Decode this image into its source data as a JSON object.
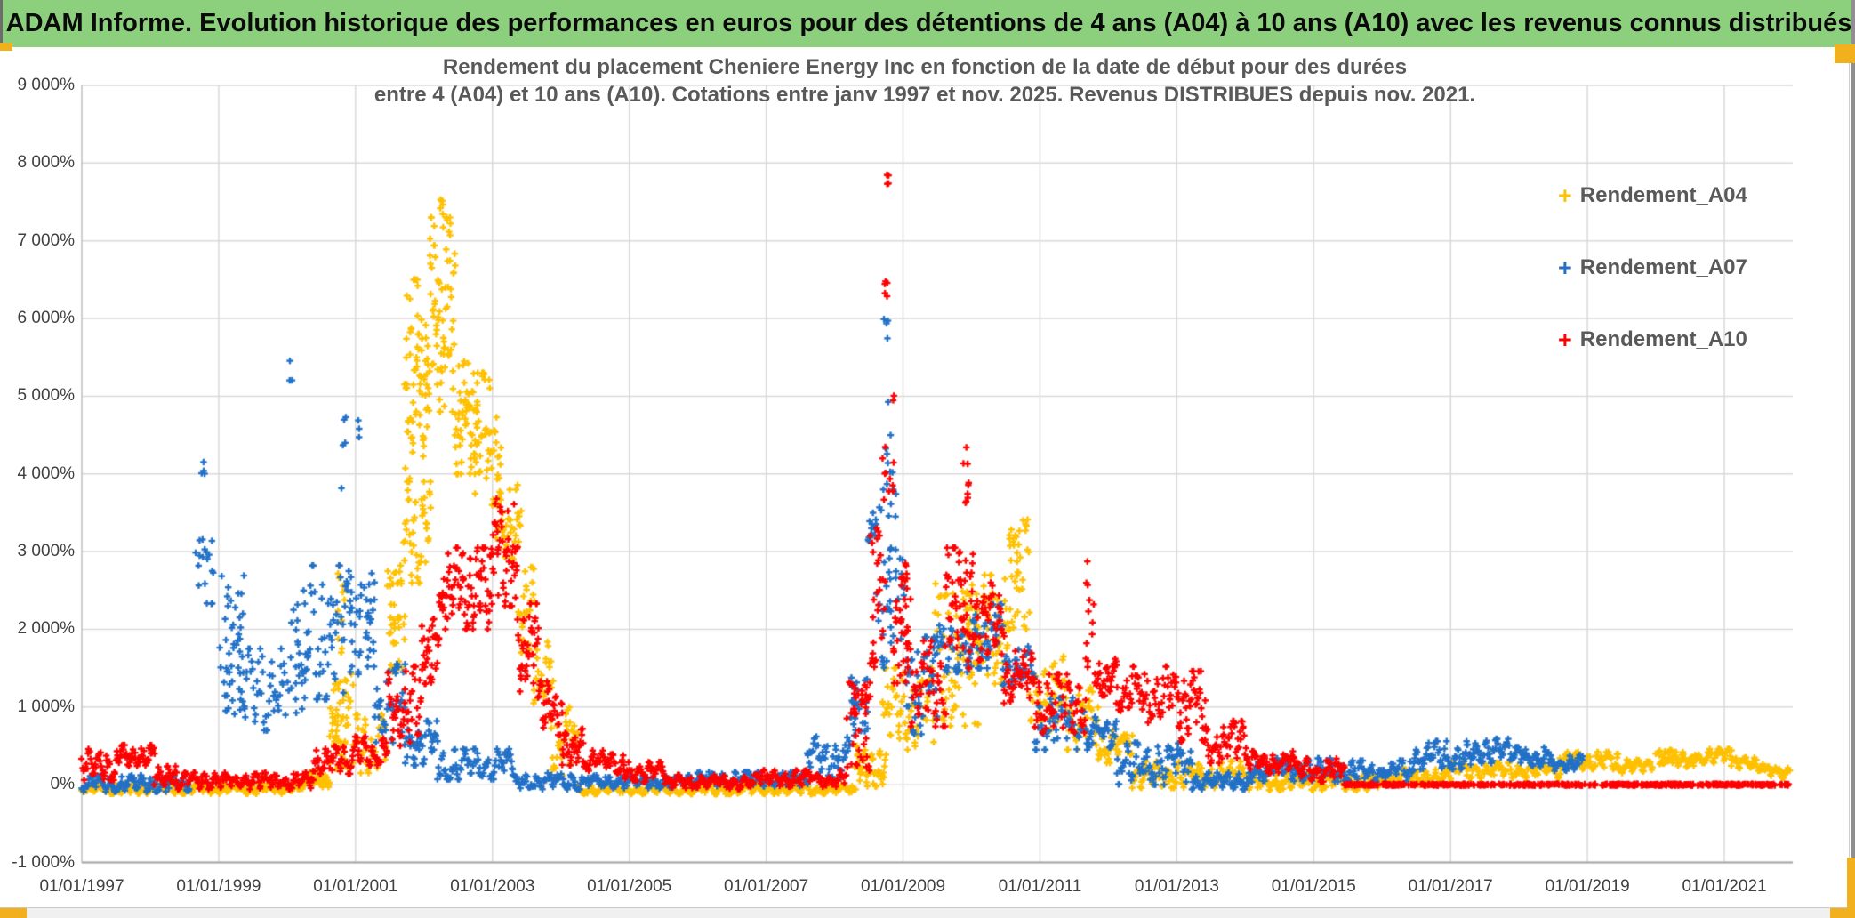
{
  "banner": {
    "text": "ADAM Informe. Evolution historique des performances en euros pour des détentions de 4 ans (A04) à 10 ans (A10) avec les revenus connus distribués",
    "background": "#8CCF7D"
  },
  "colors": {
    "grid": "#D9D9D9",
    "axis_left": "#BFBFBF",
    "axis_bottom": "#A6A6A6",
    "tick_text": "#404040",
    "title_text": "#595959",
    "accent_corner": "#F2B01E"
  },
  "chart_data": {
    "type": "scatter",
    "title_line1": "Rendement du placement Cheniere Energy Inc en fonction de la date de début pour des durées",
    "title_line2": "entre 4 (A04) et 10 ans (A10). Cotations entre janv 1997 et nov. 2025. Revenus DISTRIBUES depuis nov. 2021.",
    "marker": "plus",
    "grid": "on",
    "legend_position": "right-inside-top",
    "x_axis": {
      "min": 1997.0,
      "max": 2022.0,
      "tick_years": [
        1997,
        1999,
        2001,
        2003,
        2005,
        2007,
        2009,
        2011,
        2013,
        2015,
        2017,
        2019,
        2021
      ],
      "tick_labels": [
        "01/01/1997",
        "01/01/1999",
        "01/01/2001",
        "01/01/2003",
        "01/01/2005",
        "01/01/2007",
        "01/01/2009",
        "01/01/2011",
        "01/01/2013",
        "01/01/2015",
        "01/01/2017",
        "01/01/2019",
        "01/01/2021"
      ]
    },
    "y_axis": {
      "min": -1000,
      "max": 9000,
      "tick_step": 1000,
      "tick_values": [
        9000,
        8000,
        7000,
        6000,
        5000,
        4000,
        3000,
        2000,
        1000,
        0,
        -1000
      ],
      "tick_labels": [
        "9 000%",
        "8 000%",
        "7 000%",
        "6 000%",
        "5 000%",
        "4 000%",
        "3 000%",
        "2 000%",
        "1 000%",
        "0%",
        "-1 000%"
      ]
    },
    "legend": [
      {
        "label": "Rendement_A04",
        "color": "#FFC000"
      },
      {
        "label": "Rendement_A07",
        "color": "#2271C7"
      },
      {
        "label": "Rendement_A10",
        "color": "#FE0000"
      }
    ],
    "series": [
      {
        "name": "Rendement_A04",
        "color": "#FFC000",
        "clusters": [
          [
            1997,
            2000.25,
            -115,
            15,
            300,
            0
          ],
          [
            2000.25,
            2000.62,
            -30,
            160,
            40,
            0
          ],
          [
            2000.62,
            2000.97,
            200,
            1500,
            55,
            1
          ],
          [
            2000.74,
            2000.84,
            1500,
            2900,
            10,
            1
          ],
          [
            2001,
            2001.45,
            150,
            900,
            45,
            0
          ],
          [
            2001.45,
            2001.72,
            1400,
            2950,
            40,
            1
          ],
          [
            2001.7,
            2002.1,
            2600,
            3900,
            45,
            0
          ],
          [
            2001.72,
            2002.05,
            3900,
            6500,
            75,
            0
          ],
          [
            2002.05,
            2002.45,
            4800,
            7300,
            85,
            0
          ],
          [
            2002.22,
            2002.32,
            7300,
            7540,
            6,
            1
          ],
          [
            2002.45,
            2002.78,
            4000,
            5450,
            60,
            0
          ],
          [
            2002.75,
            2003.12,
            3600,
            5300,
            50,
            0
          ],
          [
            2003.05,
            2003.42,
            2900,
            3950,
            40,
            0
          ],
          [
            2003.38,
            2003.62,
            1700,
            2800,
            28,
            0
          ],
          [
            2003.6,
            2003.88,
            1050,
            1900,
            25,
            0
          ],
          [
            2003.85,
            2004.25,
            80,
            1000,
            38,
            0
          ],
          [
            2004.25,
            2008.3,
            -120,
            -5,
            280,
            0
          ],
          [
            2008.3,
            2008.75,
            -20,
            500,
            50,
            0
          ],
          [
            2008.7,
            2009.45,
            450,
            1500,
            70,
            0
          ],
          [
            2009.45,
            2010.1,
            700,
            2600,
            80,
            1
          ],
          [
            2010.05,
            2010.55,
            1300,
            2700,
            60,
            0
          ],
          [
            2010.55,
            2010.85,
            2000,
            3460,
            40,
            1
          ],
          [
            2010.85,
            2011.4,
            700,
            1650,
            50,
            0
          ],
          [
            2011.4,
            2011.85,
            450,
            1250,
            40,
            0
          ],
          [
            2011.85,
            2012.35,
            280,
            700,
            40,
            0
          ],
          [
            2012.35,
            2014,
            -40,
            300,
            130,
            0
          ],
          [
            2014,
            2015.95,
            -70,
            140,
            150,
            0
          ],
          [
            2015.95,
            2017,
            0,
            200,
            85,
            0
          ],
          [
            2017,
            2018.6,
            90,
            280,
            120,
            0
          ],
          [
            2018.6,
            2019.45,
            200,
            420,
            70,
            0
          ],
          [
            2019.45,
            2019.95,
            150,
            320,
            40,
            0
          ],
          [
            2019.95,
            2020.25,
            260,
            470,
            25,
            1
          ],
          [
            2020.25,
            2020.55,
            230,
            420,
            30,
            0
          ],
          [
            2020.55,
            2021.1,
            280,
            460,
            45,
            0
          ],
          [
            2021.1,
            2021.6,
            180,
            350,
            40,
            0
          ],
          [
            2021.6,
            2021.95,
            90,
            230,
            30,
            0
          ]
        ]
      },
      {
        "name": "Rendement_A07",
        "color": "#2271C7",
        "clusters": [
          [
            1997,
            1998.6,
            -90,
            120,
            130,
            0
          ],
          [
            1998.65,
            1998.92,
            2300,
            3260,
            18,
            1
          ],
          [
            1998.72,
            1998.82,
            3880,
            4180,
            4,
            1
          ],
          [
            1999,
            1999.38,
            800,
            2700,
            48,
            1
          ],
          [
            1999.35,
            1999.98,
            700,
            1750,
            50,
            0
          ],
          [
            2000,
            2000.3,
            900,
            2500,
            32,
            1
          ],
          [
            2000.03,
            2000.08,
            5120,
            5480,
            3,
            1
          ],
          [
            2000.3,
            2000.92,
            1100,
            2820,
            60,
            0
          ],
          [
            2000.78,
            2000.86,
            3760,
            4740,
            5,
            1
          ],
          [
            2000.92,
            2001.28,
            1400,
            2720,
            42,
            1
          ],
          [
            2001.02,
            2001.08,
            4400,
            4720,
            3,
            1
          ],
          [
            2001.28,
            2001.72,
            500,
            1550,
            42,
            0
          ],
          [
            2001.72,
            2002.2,
            250,
            820,
            45,
            0
          ],
          [
            2002.2,
            2003.3,
            70,
            460,
            85,
            0
          ],
          [
            2003.3,
            2004.4,
            -60,
            150,
            80,
            0
          ],
          [
            2004.4,
            2006,
            -45,
            120,
            115,
            0
          ],
          [
            2006,
            2007.6,
            -20,
            165,
            115,
            0
          ],
          [
            2007.6,
            2008.22,
            90,
            620,
            50,
            0
          ],
          [
            2008.22,
            2008.48,
            600,
            1420,
            28,
            1
          ],
          [
            2008.48,
            2008.64,
            3130,
            3500,
            14,
            1
          ],
          [
            2008.64,
            2008.9,
            3400,
            5000,
            16,
            1
          ],
          [
            2008.72,
            2008.8,
            5650,
            6160,
            4,
            1
          ],
          [
            2008.6,
            2009.05,
            1500,
            3050,
            40,
            1
          ],
          [
            2009.05,
            2009.5,
            650,
            1900,
            50,
            0
          ],
          [
            2009.45,
            2009.98,
            1450,
            2050,
            42,
            0
          ],
          [
            2009.98,
            2010.45,
            1500,
            2320,
            45,
            0
          ],
          [
            2010.45,
            2010.92,
            1280,
            1780,
            38,
            0
          ],
          [
            2010.92,
            2011.72,
            450,
            1120,
            62,
            0
          ],
          [
            2011.72,
            2012.12,
            480,
            870,
            35,
            0
          ],
          [
            2012.12,
            2013.22,
            0,
            540,
            85,
            0
          ],
          [
            2013.22,
            2014.1,
            -60,
            160,
            70,
            0
          ],
          [
            2014.1,
            2015.25,
            50,
            340,
            95,
            0
          ],
          [
            2015.25,
            2016.45,
            40,
            310,
            100,
            0
          ],
          [
            2016.45,
            2017.3,
            200,
            560,
            72,
            0
          ],
          [
            2017.3,
            2017.95,
            280,
            590,
            55,
            0
          ],
          [
            2017.95,
            2018.45,
            230,
            480,
            45,
            0
          ],
          [
            2018.45,
            2018.93,
            180,
            380,
            40,
            0
          ]
        ]
      },
      {
        "name": "Rendement_A10",
        "color": "#FE0000",
        "clusters": [
          [
            1997,
            1997.52,
            60,
            460,
            48,
            0
          ],
          [
            1997.52,
            1998.06,
            240,
            510,
            50,
            0
          ],
          [
            1998.06,
            1998.38,
            0,
            260,
            30,
            0
          ],
          [
            1998.38,
            2000.38,
            -60,
            155,
            165,
            0
          ],
          [
            2000.38,
            2000.97,
            140,
            490,
            55,
            0
          ],
          [
            2000.97,
            2001.47,
            250,
            620,
            45,
            0
          ],
          [
            2001.47,
            2001.97,
            500,
            1520,
            50,
            0
          ],
          [
            2001.97,
            2002.22,
            1300,
            2230,
            35,
            0
          ],
          [
            2002.22,
            2002.97,
            2000,
            3050,
            90,
            0
          ],
          [
            2002.97,
            2003.37,
            2300,
            3680,
            55,
            0
          ],
          [
            2003.37,
            2003.67,
            1200,
            2330,
            40,
            0
          ],
          [
            2003.67,
            2004.02,
            640,
            1330,
            40,
            0
          ],
          [
            2004.02,
            2004.32,
            250,
            720,
            35,
            0
          ],
          [
            2004.32,
            2004.92,
            150,
            440,
            48,
            0
          ],
          [
            2004.92,
            2005.52,
            30,
            290,
            50,
            0
          ],
          [
            2005.52,
            2006.92,
            -55,
            125,
            105,
            0
          ],
          [
            2006.92,
            2008.17,
            -25,
            185,
            95,
            0
          ],
          [
            2008.17,
            2008.52,
            150,
            1350,
            45,
            1
          ],
          [
            2008.52,
            2008.74,
            1500,
            3320,
            30,
            1
          ],
          [
            2008.7,
            2008.88,
            3300,
            5450,
            12,
            1
          ],
          [
            2008.73,
            2008.81,
            6200,
            6750,
            5,
            1
          ],
          [
            2008.74,
            2008.79,
            7650,
            7870,
            4,
            1
          ],
          [
            2008.86,
            2009.12,
            1300,
            2850,
            45,
            1
          ],
          [
            2009.12,
            2009.62,
            750,
            1850,
            50,
            0
          ],
          [
            2009.62,
            2010.02,
            1500,
            3050,
            55,
            0
          ],
          [
            2009.86,
            2009.96,
            3550,
            4360,
            9,
            1
          ],
          [
            2010.02,
            2010.47,
            1600,
            2650,
            50,
            0
          ],
          [
            2010.47,
            2010.92,
            1050,
            1720,
            45,
            0
          ],
          [
            2010.92,
            2011.67,
            670,
            1420,
            65,
            0
          ],
          [
            2011.67,
            2011.8,
            1500,
            2920,
            12,
            1
          ],
          [
            2011.8,
            2012.12,
            1150,
            1620,
            35,
            0
          ],
          [
            2012.12,
            2013.02,
            800,
            1520,
            75,
            0
          ],
          [
            2013.02,
            2013.42,
            550,
            1460,
            45,
            0
          ],
          [
            2013.42,
            2014.02,
            280,
            820,
            55,
            0
          ],
          [
            2014.02,
            2014.72,
            150,
            430,
            58,
            0
          ],
          [
            2014.72,
            2015.45,
            40,
            340,
            60,
            0
          ],
          [
            2015.45,
            2021.95,
            -12,
            12,
            520,
            1
          ]
        ]
      }
    ]
  }
}
